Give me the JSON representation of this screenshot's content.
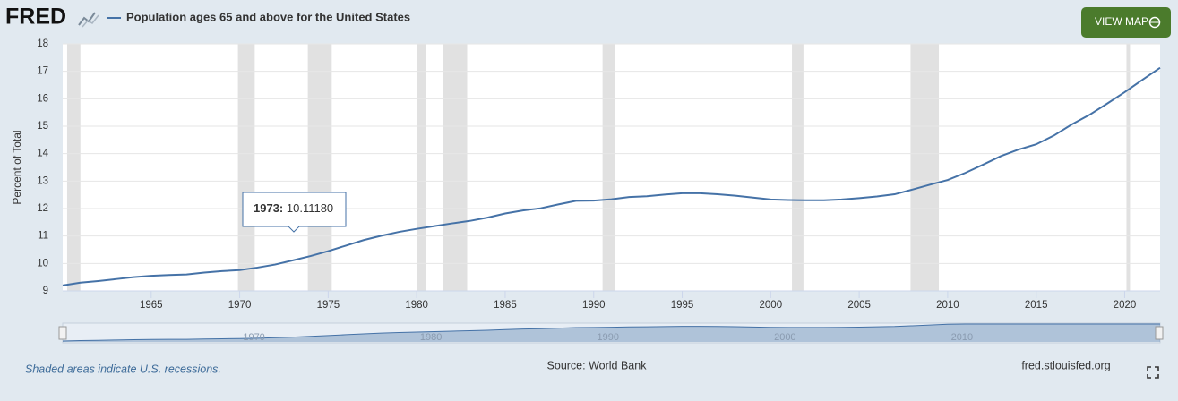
{
  "header": {
    "logo": "FRED",
    "button": "VIEW MAP"
  },
  "chart_data": {
    "type": "line",
    "series": [
      {
        "name": "Population ages 65 and above for the United States",
        "color": "#4572a7",
        "values": [
          9.2,
          9.3,
          9.36,
          9.43,
          9.5,
          9.55,
          9.58,
          9.6,
          9.67,
          9.72,
          9.76,
          9.85,
          9.96,
          10.1118,
          10.27,
          10.45,
          10.65,
          10.85,
          11.01,
          11.15,
          11.26,
          11.36,
          11.46,
          11.55,
          11.67,
          11.82,
          11.93,
          12.01,
          12.15,
          12.28,
          12.29,
          12.34,
          12.42,
          12.45,
          12.51,
          12.56,
          12.56,
          12.52,
          12.47,
          12.4,
          12.33,
          12.31,
          12.3,
          12.3,
          12.33,
          12.38,
          12.44,
          12.52,
          12.69,
          12.87,
          13.04,
          13.3,
          13.6,
          13.91,
          14.15,
          14.34,
          14.66,
          15.06,
          15.41,
          15.82,
          16.24,
          16.69,
          17.13
        ]
      }
    ],
    "x": [
      1960,
      1961,
      1962,
      1963,
      1964,
      1965,
      1966,
      1967,
      1968,
      1969,
      1970,
      1971,
      1972,
      1973,
      1974,
      1975,
      1976,
      1977,
      1978,
      1979,
      1980,
      1981,
      1982,
      1983,
      1984,
      1985,
      1986,
      1987,
      1988,
      1989,
      1990,
      1991,
      1992,
      1993,
      1994,
      1995,
      1996,
      1997,
      1998,
      1999,
      2000,
      2001,
      2002,
      2003,
      2004,
      2005,
      2006,
      2007,
      2008,
      2009,
      2010,
      2011,
      2012,
      2013,
      2014,
      2015,
      2016,
      2017,
      2018,
      2019,
      2020,
      2021,
      2022
    ],
    "xlim": [
      1960,
      2022
    ],
    "xticks": [
      1965,
      1970,
      1975,
      1980,
      1985,
      1990,
      1995,
      2000,
      2005,
      2010,
      2015,
      2020
    ],
    "ylim": [
      9,
      18
    ],
    "yticks": [
      9,
      10,
      11,
      12,
      13,
      14,
      15,
      16,
      17,
      18
    ],
    "y_label": "Percent of Total",
    "grid": true,
    "recessions": [
      [
        1960.25,
        1961.0
      ],
      [
        1969.9,
        1970.85
      ],
      [
        1973.85,
        1975.2
      ],
      [
        1980.0,
        1980.5
      ],
      [
        1981.5,
        1982.85
      ],
      [
        1990.5,
        1991.2
      ],
      [
        2001.2,
        2001.85
      ],
      [
        2007.9,
        2009.5
      ],
      [
        2020.1,
        2020.3
      ]
    ],
    "recession_color": "#e1e1e1",
    "tooltip": {
      "label": "1973:",
      "value_label": "10.11180"
    },
    "navigator_xticks": [
      1970,
      1980,
      1990,
      2000,
      2010
    ]
  },
  "footer": {
    "note": "Shaded areas indicate U.S. recessions.",
    "source": "Source: World Bank",
    "site": "fred.stlouisfed.org"
  }
}
